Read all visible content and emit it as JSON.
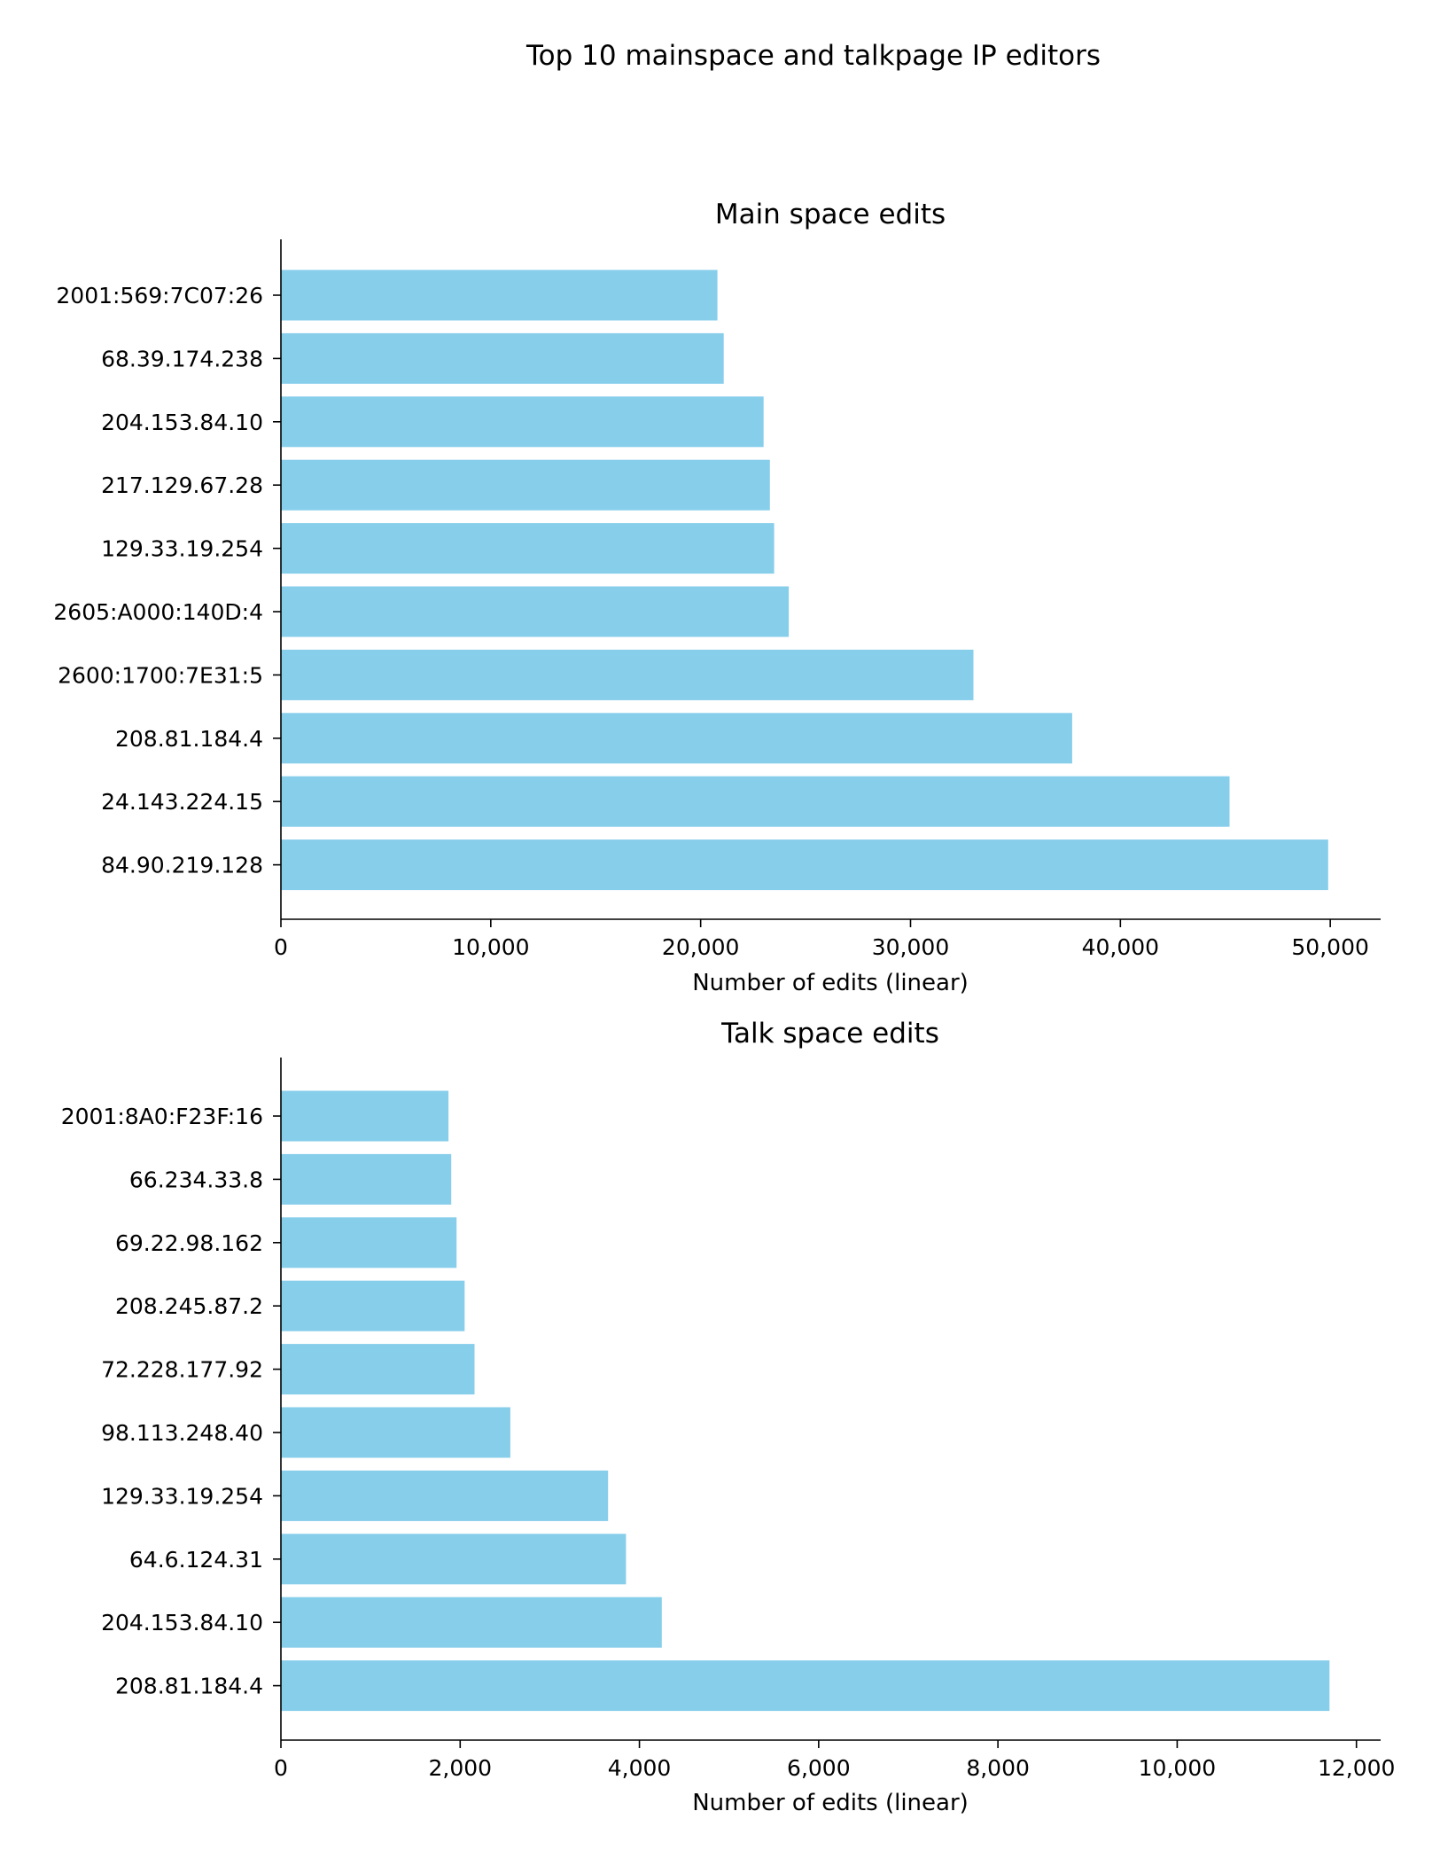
{
  "figure": {
    "suptitle": "Top 10 mainspace and talkpage IP editors",
    "bar_color": "#87CEEB"
  },
  "chart_data": [
    {
      "type": "bar",
      "orientation": "horizontal",
      "title": "Main space edits",
      "xlabel": "Number of edits (linear)",
      "ylabel": "",
      "categories": [
        "2001:569:7C07:26",
        "68.39.174.238",
        "204.153.84.10",
        "217.129.67.28",
        "129.33.19.254",
        "2605:A000:140D:4",
        "2600:1700:7E31:5",
        "208.81.184.4",
        "24.143.224.15",
        "84.90.219.128"
      ],
      "values": [
        20800,
        21100,
        23000,
        23300,
        23500,
        24200,
        33000,
        37700,
        45200,
        49900
      ],
      "xlim": [
        0,
        52400
      ],
      "xticks": [
        0,
        10000,
        20000,
        30000,
        40000,
        50000
      ],
      "xtick_labels": [
        "0",
        "10,000",
        "20,000",
        "30,000",
        "40,000",
        "50,000"
      ]
    },
    {
      "type": "bar",
      "orientation": "horizontal",
      "title": "Talk space edits",
      "xlabel": "Number of edits (linear)",
      "ylabel": "",
      "categories": [
        "2001:8A0:F23F:16",
        "66.234.33.8",
        "69.22.98.162",
        "208.245.87.2",
        "72.228.177.92",
        "98.113.248.40",
        "129.33.19.254",
        "64.6.124.31",
        "204.153.84.10",
        "208.81.184.4"
      ],
      "values": [
        1870,
        1900,
        1960,
        2050,
        2160,
        2560,
        3650,
        3850,
        4250,
        11700
      ],
      "xlim": [
        0,
        12270
      ],
      "xticks": [
        0,
        2000,
        4000,
        6000,
        8000,
        10000,
        12000
      ],
      "xtick_labels": [
        "0",
        "2,000",
        "4,000",
        "6,000",
        "8,000",
        "10,000",
        "12,000"
      ]
    }
  ]
}
